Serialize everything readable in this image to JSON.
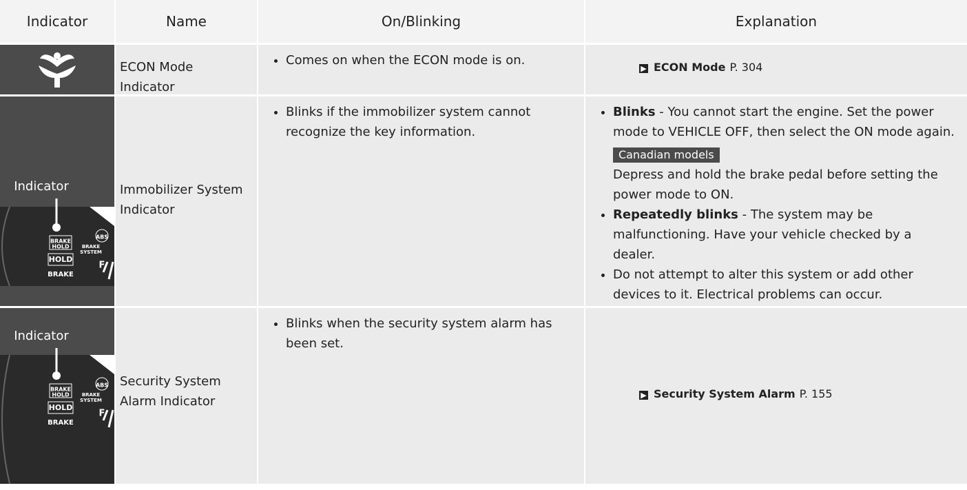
{
  "table": {
    "header": [
      "Indicator",
      "Name",
      "On/Blinking",
      "Explanation"
    ],
    "rows": [
      {
        "name": [
          "ECON Mode",
          "Indicator"
        ],
        "on_blinking": [
          "Comes on when the ECON mode is on."
        ],
        "explanation": {
          "reference": {
            "title": "ECON Mode",
            "page": "P. 304"
          }
        }
      },
      {
        "indicator": {
          "label": "Indicator",
          "cluster": [
            "BRAKE",
            "HOLD",
            "HOLD",
            "BRAKE",
            "BRAKE",
            "SYSTEM",
            "ABS",
            "F"
          ]
        },
        "name": [
          "Immobilizer System",
          "Indicator"
        ],
        "on_blinking": [
          "Blinks if the immobilizer system cannot recognize the key information."
        ],
        "explanation": {
          "items": [
            {
              "bold": "Blinks",
              "text": "- You cannot start the engine. Set the power mode to VEHICLE OFF, then select the ON mode again.",
              "note": {
                "tag": "Canadian models",
                "text": "Depress and hold the brake pedal before setting the power mode to ON."
              }
            },
            {
              "bold": "Repeatedly blinks",
              "text": "- The system may be malfunctioning. Have your vehicle checked by a dealer."
            },
            {
              "text": "Do not attempt to alter this system or add other devices to it. Electrical problems can occur."
            }
          ]
        }
      },
      {
        "indicator": {
          "label": "Indicator",
          "cluster": [
            "BRAKE",
            "HOLD",
            "HOLD",
            "BRAKE",
            "BRAKE",
            "SYSTEM",
            "ABS",
            "F"
          ]
        },
        "name": [
          "Security System",
          "Alarm Indicator"
        ],
        "on_blinking": [
          "Blinks when the security system alarm has been set."
        ],
        "explanation": {
          "reference": {
            "title": "Security System Alarm",
            "page": "P. 155"
          }
        }
      }
    ]
  }
}
